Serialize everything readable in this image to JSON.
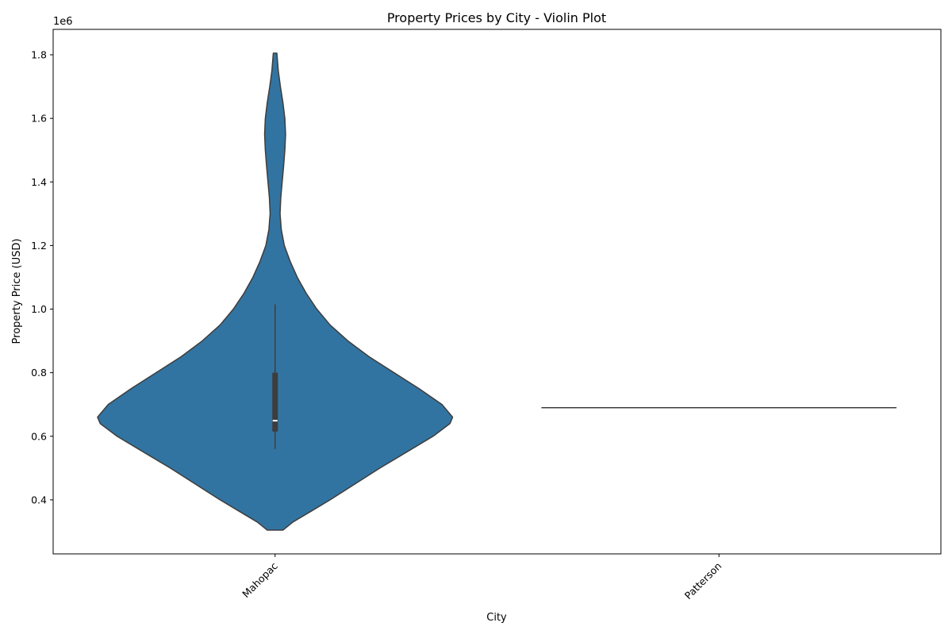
{
  "chart_data": {
    "type": "violin",
    "title": "Property Prices by City - Violin Plot",
    "xlabel": "City",
    "ylabel": "Property Price (USD)",
    "y_offset_label": "1e6",
    "categories": [
      "Mahopac",
      "Patterson"
    ],
    "ylim": [
      230000,
      1880000
    ],
    "yticks": [
      400000,
      600000,
      800000,
      1000000,
      1200000,
      1400000,
      1600000,
      1800000
    ],
    "ytick_labels": [
      "0.4",
      "0.6",
      "0.8",
      "1.0",
      "1.2",
      "1.4",
      "1.6",
      "1.8"
    ],
    "grid": false,
    "fill_color": "#3274a1",
    "edge_color": "#3d3d3d",
    "violins": [
      {
        "category": "Mahopac",
        "min": 305000,
        "max": 1805000,
        "q1": 615000,
        "median": 649000,
        "q3": 800000,
        "whisker_low": 560000,
        "whisker_high": 1015000,
        "density": [
          [
            305000,
            0.045
          ],
          [
            330000,
            0.1
          ],
          [
            360000,
            0.19
          ],
          [
            400000,
            0.31
          ],
          [
            450000,
            0.45
          ],
          [
            500000,
            0.59
          ],
          [
            550000,
            0.74
          ],
          [
            600000,
            0.89
          ],
          [
            640000,
            0.985
          ],
          [
            660000,
            1.0
          ],
          [
            700000,
            0.94
          ],
          [
            750000,
            0.81
          ],
          [
            800000,
            0.67
          ],
          [
            850000,
            0.53
          ],
          [
            900000,
            0.41
          ],
          [
            950000,
            0.31
          ],
          [
            1000000,
            0.235
          ],
          [
            1050000,
            0.175
          ],
          [
            1100000,
            0.125
          ],
          [
            1150000,
            0.085
          ],
          [
            1200000,
            0.052
          ],
          [
            1250000,
            0.035
          ],
          [
            1300000,
            0.028
          ],
          [
            1350000,
            0.032
          ],
          [
            1400000,
            0.04
          ],
          [
            1450000,
            0.048
          ],
          [
            1500000,
            0.055
          ],
          [
            1550000,
            0.059
          ],
          [
            1600000,
            0.055
          ],
          [
            1650000,
            0.044
          ],
          [
            1700000,
            0.03
          ],
          [
            1750000,
            0.018
          ],
          [
            1805000,
            0.01
          ]
        ]
      },
      {
        "category": "Patterson",
        "value": 690000
      }
    ]
  }
}
